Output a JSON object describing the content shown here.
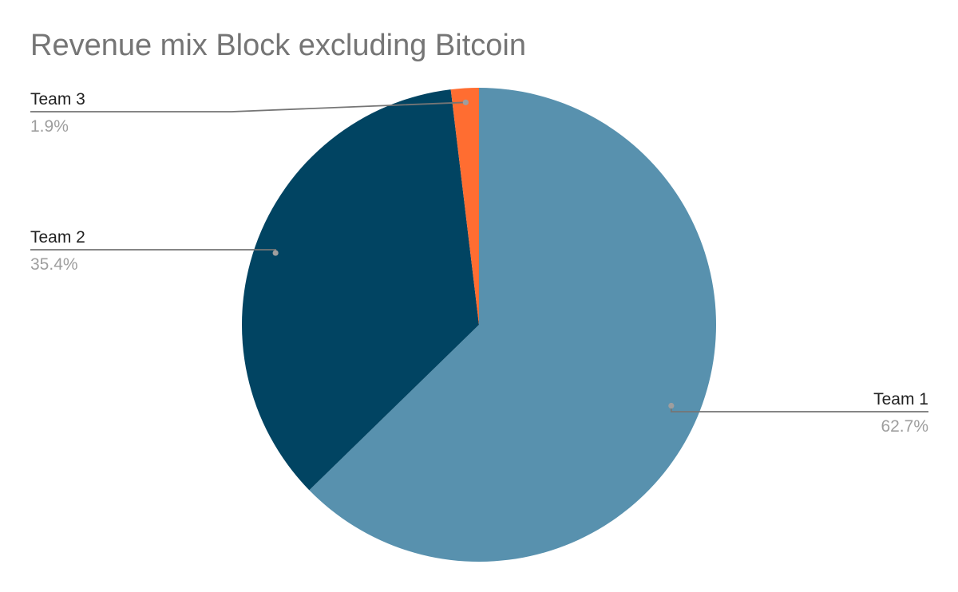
{
  "chart_data": {
    "type": "pie",
    "title": "Revenue mix Block excluding Bitcoin",
    "slices": [
      {
        "name": "Team 1",
        "value": 62.7,
        "label": "62.7%",
        "color": "#5891ae"
      },
      {
        "name": "Team 2",
        "value": 35.4,
        "label": "35.4%",
        "color": "#014462"
      },
      {
        "name": "Team 3",
        "value": 1.9,
        "label": "1.9%",
        "color": "#ff6d31"
      }
    ],
    "start_angle": "12 o'clock",
    "direction": "clockwise",
    "legend": "none",
    "label_style": "callout lines with name and percentage"
  },
  "colors": {
    "title": "#757575",
    "label_name": "#222222",
    "label_value": "#9e9e9e",
    "leader_line": "#757575",
    "leader_dot": "#9e9e9e"
  }
}
